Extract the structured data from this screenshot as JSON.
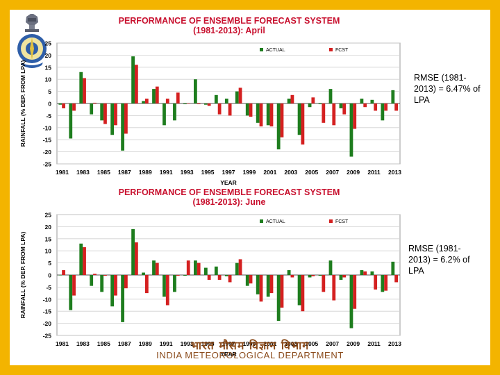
{
  "slide": {
    "notes": [
      {
        "lines": [
          "RMSE (1981-",
          "2013) = 6.47% of",
          "LPA"
        ]
      },
      {
        "lines": [
          "RMSE (1981-",
          "2013) = 6.2% of",
          "LPA"
        ]
      }
    ],
    "footer_hindi": "भारत मौसम विज्ञान विभाग",
    "footer_english": "INDIA METEOROLOGICAL DEPARTMENT",
    "logo_icon": "imd-emblem-icon"
  },
  "chart_data": [
    {
      "type": "bar",
      "title": "PERFORMANCE OF ENSEMBLE FORECAST SYSTEM",
      "subtitle": "(1981-2013): April",
      "xlabel": "YEAR",
      "ylabel": "RAINFALL (% DEP. FROM LPA)",
      "ylim": [
        -25,
        25
      ],
      "yticks": [
        25,
        20,
        15,
        10,
        5,
        0,
        -5,
        -10,
        -15,
        -20,
        -25
      ],
      "x_tick_labels": [
        "1981",
        "1983",
        "1985",
        "1987",
        "1989",
        "1991",
        "1993",
        "1995",
        "1997",
        "1999",
        "2001",
        "2003",
        "2005",
        "2007",
        "2009",
        "2011",
        "2013"
      ],
      "categories": [
        "1981",
        "1982",
        "1983",
        "1984",
        "1985",
        "1986",
        "1987",
        "1988",
        "1989",
        "1990",
        "1991",
        "1992",
        "1993",
        "1994",
        "1995",
        "1996",
        "1997",
        "1998",
        "1999",
        "2000",
        "2001",
        "2002",
        "2003",
        "2004",
        "2005",
        "2006",
        "2007",
        "2008",
        "2009",
        "2010",
        "2011",
        "2012",
        "2013"
      ],
      "grid": true,
      "legend_position": "top",
      "series": [
        {
          "name": "ACTUAL",
          "color": "#1e7d1e",
          "values": [
            -0.5,
            -14.5,
            13,
            -4.5,
            -7,
            -13,
            -19.5,
            19.5,
            1,
            6,
            -9,
            -7,
            -0.3,
            10,
            -0.5,
            3.5,
            2,
            5,
            -5,
            -8,
            -9,
            -19,
            2,
            -13,
            -1.5,
            -0.3,
            6,
            -2,
            -22,
            2,
            1.5,
            -7,
            5.5
          ]
        },
        {
          "name": "FCST",
          "color": "#d42020",
          "values": [
            -2,
            -3,
            10.5,
            0.3,
            -8.5,
            -9,
            -12.5,
            16,
            2,
            7,
            2,
            4.5,
            0,
            -0.3,
            -1,
            -4.5,
            -5,
            6.5,
            -5.5,
            -9.5,
            -9.5,
            -14,
            3.5,
            -17,
            2.5,
            -8,
            -9,
            -4.5,
            -10.5,
            -1.5,
            -3,
            -3,
            -3
          ]
        }
      ]
    },
    {
      "type": "bar",
      "title": "PERFORMANCE OF ENSEMBLE FORECAST SYSTEM",
      "subtitle": "(1981-2013): June",
      "xlabel": "YEAR",
      "ylabel": "RAINFALL (% DEP. FROM LPA)",
      "ylim": [
        -25,
        25
      ],
      "yticks": [
        25,
        20,
        15,
        10,
        5,
        0,
        -5,
        -10,
        -15,
        -20,
        -25
      ],
      "x_tick_labels": [
        "1981",
        "1983",
        "1985",
        "1987",
        "1989",
        "1991",
        "1993",
        "1995",
        "1997",
        "1999",
        "2001",
        "2003",
        "2005",
        "2007",
        "2009",
        "2011",
        "2013"
      ],
      "categories": [
        "1981",
        "1982",
        "1983",
        "1984",
        "1985",
        "1986",
        "1987",
        "1988",
        "1989",
        "1990",
        "1991",
        "1992",
        "1993",
        "1994",
        "1995",
        "1996",
        "1997",
        "1998",
        "1999",
        "2000",
        "2001",
        "2002",
        "2003",
        "2004",
        "2005",
        "2006",
        "2007",
        "2008",
        "2009",
        "2010",
        "2011",
        "2012",
        "2013"
      ],
      "grid": true,
      "legend_position": "top",
      "series": [
        {
          "name": "ACTUAL",
          "color": "#1e7d1e",
          "values": [
            0,
            -14.5,
            13,
            -4.5,
            -7,
            -13,
            -19.5,
            19,
            1,
            6,
            -9,
            -7,
            -0.3,
            6,
            3,
            3.5,
            -0.5,
            5,
            -4.5,
            -8,
            -9,
            -19,
            2,
            -12.5,
            -1,
            -0.3,
            6,
            -2,
            -22,
            2,
            1.5,
            -7,
            5.5
          ]
        },
        {
          "name": "FCST",
          "color": "#d42020",
          "values": [
            2,
            -8.5,
            11.5,
            0.5,
            -0.3,
            -8.5,
            -5.5,
            13.5,
            -7.5,
            5,
            -12.5,
            -0.3,
            6,
            5,
            -2,
            -2,
            -3,
            6.5,
            -3.5,
            -11,
            -7.5,
            -13.5,
            -1,
            -15,
            -0.5,
            -7,
            -10.5,
            -1,
            -14,
            1.5,
            -6,
            -6.5,
            -3
          ]
        }
      ]
    }
  ]
}
